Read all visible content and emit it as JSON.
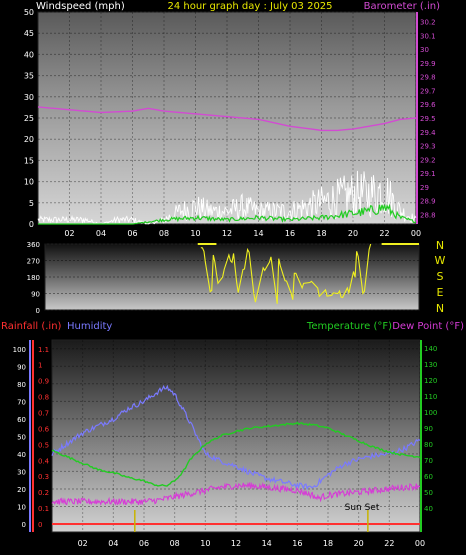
{
  "header": {
    "wind_label": "Windspeed (mph)",
    "title": "24 hour graph day : July 03 2025",
    "baro_label": "Barometer (.in)"
  },
  "mid": {
    "compass": [
      "N",
      "W",
      "S",
      "E",
      "N"
    ]
  },
  "bottom": {
    "rain_label": "Rainfall (.in)",
    "hum_label": "Humidity",
    "temp_label": "Temperature (°F)",
    "dew_label": "Dew Point (°F)",
    "sunset_label": "Sun Set"
  },
  "colors": {
    "wind": "#ffffff",
    "wind_avg": "#22cc22",
    "baro": "#d24bd2",
    "dir": "#f0f020",
    "humidity": "#7a7aff",
    "temperature": "#22cc22",
    "dewpoint": "#d63cd6",
    "rain": "#ff3030"
  },
  "chart_data": [
    {
      "type": "line",
      "name": "wind-barometer",
      "x_ticks": [
        "02",
        "04",
        "06",
        "08",
        "10",
        "12",
        "14",
        "16",
        "18",
        "20",
        "22",
        "00"
      ],
      "y_left_ticks": [
        0,
        5,
        10,
        15,
        20,
        25,
        30,
        35,
        40,
        45,
        50
      ],
      "y_right_ticks": [
        "28.8",
        "28.9",
        "29",
        "29.1",
        "29.2",
        "29.3",
        "29.4",
        "29.5",
        "29.6",
        "29.7",
        "29.8",
        "29.9",
        "30",
        "30.1",
        "30.2"
      ],
      "ylim_left": [
        0,
        50
      ],
      "ylim_right": [
        28.73,
        30.27
      ],
      "series": [
        {
          "axis": "left",
          "x": [
            0,
            1,
            2,
            3,
            4,
            5,
            6,
            7,
            8,
            9,
            10,
            11,
            12,
            13,
            14,
            15,
            16,
            17,
            18,
            19,
            20,
            21,
            22,
            23,
            24
          ],
          "values": [
            1,
            1,
            1,
            1,
            0,
            1,
            1,
            0,
            1,
            3,
            4,
            3,
            3,
            4,
            3,
            3,
            3,
            4,
            5,
            6,
            7,
            7,
            8,
            3,
            1
          ]
        },
        {
          "axis": "left",
          "x": [
            0,
            2,
            4,
            6,
            8,
            10,
            12,
            14,
            16,
            18,
            20,
            21,
            22,
            23,
            24
          ],
          "values": [
            0,
            0,
            0,
            0,
            1,
            1.5,
            1,
            1.5,
            1,
            1.5,
            2.5,
            3,
            4,
            1.5,
            0.5
          ]
        },
        {
          "axis": "right",
          "x": [
            0,
            2,
            4,
            6,
            7,
            8,
            10,
            12,
            14,
            16,
            18,
            19,
            20,
            21,
            22,
            23,
            24
          ],
          "values": [
            29.58,
            29.56,
            29.54,
            29.55,
            29.57,
            29.55,
            29.53,
            29.51,
            29.49,
            29.44,
            29.41,
            29.41,
            29.42,
            29.44,
            29.46,
            29.49,
            29.5
          ]
        }
      ]
    },
    {
      "type": "scatter",
      "name": "wind-direction",
      "x_ticks": [],
      "y_ticks": [
        0,
        90,
        180,
        270,
        360
      ],
      "ylim": [
        0,
        360
      ],
      "x": [
        10,
        10.2,
        10.6,
        10.8,
        11,
        11.4,
        11.8,
        12,
        12.3,
        12.7,
        13,
        13.4,
        14,
        14.4,
        14.8,
        15,
        15.4,
        15.8,
        16,
        16.5,
        17,
        17.5,
        18,
        18.4,
        18.8,
        19,
        19.4,
        19.8,
        20,
        20.4,
        20.8
      ],
      "values": [
        340,
        320,
        100,
        300,
        200,
        180,
        300,
        260,
        150,
        220,
        330,
        90,
        230,
        260,
        100,
        280,
        160,
        90,
        200,
        120,
        150,
        120,
        110,
        80,
        90,
        70,
        120,
        210,
        320,
        90,
        330
      ]
    },
    {
      "type": "line",
      "name": "temp-humidity",
      "x_ticks": [
        "02",
        "04",
        "06",
        "08",
        "10",
        "12",
        "14",
        "16",
        "18",
        "20",
        "22",
        "00"
      ],
      "y_hum_ticks": [
        0,
        10,
        20,
        30,
        40,
        50,
        60,
        70,
        80,
        90,
        100
      ],
      "y_rain_ticks": [
        "0",
        "0.1",
        "0.2",
        "0.3",
        "0.4",
        "0.5",
        "0.6",
        "0.7",
        "0.8",
        "0.9",
        "1",
        "1.1"
      ],
      "y_temp_ticks": [
        40,
        50,
        60,
        70,
        80,
        90,
        100,
        110,
        120,
        130,
        140
      ],
      "ylim_hum": [
        0,
        105
      ],
      "ylim_temp": [
        30,
        145
      ],
      "series": [
        {
          "name": "Humidity",
          "axis": "hum",
          "x": [
            0,
            1,
            2,
            3,
            4,
            5,
            6,
            6.5,
            7,
            7.5,
            8,
            9,
            10,
            11,
            12,
            13,
            14,
            15,
            16,
            17,
            18,
            19,
            20,
            21,
            22,
            23,
            24
          ],
          "values": [
            40,
            46,
            52,
            56,
            60,
            66,
            70,
            73,
            76,
            78,
            74,
            58,
            40,
            36,
            33,
            29,
            26,
            24,
            22,
            21,
            28,
            34,
            37,
            39,
            40,
            43,
            48
          ]
        },
        {
          "name": "Temperature",
          "axis": "temp",
          "x": [
            0,
            1,
            2,
            3,
            4,
            5,
            6,
            6.5,
            7,
            7.5,
            8,
            8.5,
            9,
            10,
            11,
            12,
            13,
            14,
            15,
            16,
            17,
            18,
            19,
            20,
            21,
            22,
            23,
            24
          ],
          "values": [
            76,
            72,
            68,
            64,
            62,
            59,
            57,
            55,
            54,
            54,
            57,
            62,
            70,
            80,
            85,
            88,
            90,
            91,
            92,
            93,
            92,
            90,
            86,
            82,
            78,
            75,
            73,
            72
          ]
        },
        {
          "name": "Dew Point",
          "axis": "temp",
          "x": [
            0,
            2,
            4,
            6,
            7,
            8,
            9,
            10,
            11,
            12,
            13,
            14,
            15,
            16,
            17,
            17.3,
            18,
            20,
            22,
            24
          ],
          "values": [
            44,
            44,
            44,
            44,
            45,
            47,
            49,
            51,
            53,
            54,
            54,
            53,
            52,
            51,
            48,
            46,
            48,
            50,
            52,
            54
          ]
        },
        {
          "name": "Rainfall",
          "axis": "rain",
          "x": [
            0,
            24
          ],
          "values": [
            0,
            0
          ]
        }
      ],
      "markers": [
        {
          "label": "Sun Set",
          "x": 20.6
        },
        {
          "label": "",
          "x": 5.4
        }
      ]
    }
  ]
}
